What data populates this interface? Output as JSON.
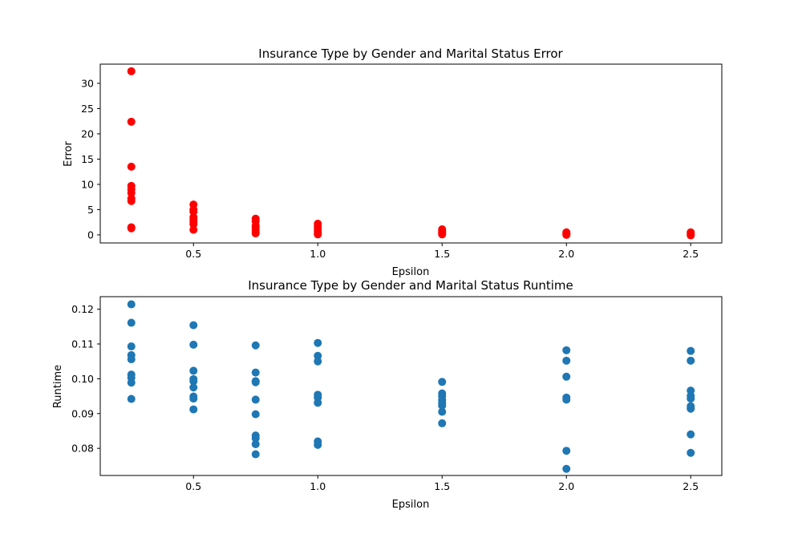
{
  "chart_data": [
    {
      "type": "scatter",
      "title": "Insurance Type by Gender and Marital Status Error",
      "xlabel": "Epsilon",
      "ylabel": "Error",
      "xlim": [
        0.125,
        2.625
      ],
      "ylim": [
        -1.6,
        33.8
      ],
      "xticks": [
        0.5,
        1.0,
        1.5,
        2.0,
        2.5
      ],
      "xtick_labels": [
        "0.5",
        "1.0",
        "1.5",
        "2.0",
        "2.5"
      ],
      "yticks": [
        0,
        5,
        10,
        15,
        20,
        25,
        30
      ],
      "ytick_labels": [
        "0",
        "5",
        "10",
        "15",
        "20",
        "25",
        "30"
      ],
      "grid": false,
      "color": "#ff0000",
      "points": [
        {
          "x": 0.25,
          "y": 32.4
        },
        {
          "x": 0.25,
          "y": 22.4
        },
        {
          "x": 0.25,
          "y": 13.5
        },
        {
          "x": 0.25,
          "y": 9.7
        },
        {
          "x": 0.25,
          "y": 9.0
        },
        {
          "x": 0.25,
          "y": 8.3
        },
        {
          "x": 0.25,
          "y": 7.2
        },
        {
          "x": 0.25,
          "y": 6.7
        },
        {
          "x": 0.25,
          "y": 1.5
        },
        {
          "x": 0.25,
          "y": 1.3
        },
        {
          "x": 0.5,
          "y": 6.0
        },
        {
          "x": 0.5,
          "y": 5.0
        },
        {
          "x": 0.5,
          "y": 4.6
        },
        {
          "x": 0.5,
          "y": 3.5
        },
        {
          "x": 0.5,
          "y": 3.0
        },
        {
          "x": 0.5,
          "y": 2.5
        },
        {
          "x": 0.5,
          "y": 2.1
        },
        {
          "x": 0.5,
          "y": 1.0
        },
        {
          "x": 0.75,
          "y": 3.2
        },
        {
          "x": 0.75,
          "y": 2.7
        },
        {
          "x": 0.75,
          "y": 1.8
        },
        {
          "x": 0.75,
          "y": 1.5
        },
        {
          "x": 0.75,
          "y": 1.0
        },
        {
          "x": 0.75,
          "y": 0.6
        },
        {
          "x": 0.75,
          "y": 0.3
        },
        {
          "x": 1.0,
          "y": 2.2
        },
        {
          "x": 1.0,
          "y": 1.6
        },
        {
          "x": 1.0,
          "y": 1.1
        },
        {
          "x": 1.0,
          "y": 0.7
        },
        {
          "x": 1.0,
          "y": 0.3
        },
        {
          "x": 1.0,
          "y": 0.1
        },
        {
          "x": 1.5,
          "y": 1.1
        },
        {
          "x": 1.5,
          "y": 0.8
        },
        {
          "x": 1.5,
          "y": 0.5
        },
        {
          "x": 1.5,
          "y": 0.3
        },
        {
          "x": 1.5,
          "y": 0.1
        },
        {
          "x": 2.0,
          "y": 0.5
        },
        {
          "x": 2.0,
          "y": 0.3
        },
        {
          "x": 2.0,
          "y": 0.1
        },
        {
          "x": 2.0,
          "y": 0.0
        },
        {
          "x": 2.5,
          "y": 0.5
        },
        {
          "x": 2.5,
          "y": 0.3
        },
        {
          "x": 2.5,
          "y": 0.1
        },
        {
          "x": 2.5,
          "y": -0.1
        }
      ]
    },
    {
      "type": "scatter",
      "title": "Insurance Type by Gender and Marital Status Runtime",
      "xlabel": "Epsilon",
      "ylabel": "Runtime",
      "xlim": [
        0.125,
        2.625
      ],
      "ylim": [
        0.0722,
        0.1236
      ],
      "xticks": [
        0.5,
        1.0,
        1.5,
        2.0,
        2.5
      ],
      "xtick_labels": [
        "0.5",
        "1.0",
        "1.5",
        "2.0",
        "2.5"
      ],
      "yticks": [
        0.08,
        0.09,
        0.1,
        0.11,
        0.12
      ],
      "ytick_labels": [
        "0.08",
        "0.09",
        "0.10",
        "0.11",
        "0.12"
      ],
      "grid": false,
      "color": "#1f77b4",
      "points": [
        {
          "x": 0.25,
          "y": 0.1214
        },
        {
          "x": 0.25,
          "y": 0.1161
        },
        {
          "x": 0.25,
          "y": 0.1093
        },
        {
          "x": 0.25,
          "y": 0.1068
        },
        {
          "x": 0.25,
          "y": 0.1056
        },
        {
          "x": 0.25,
          "y": 0.1012
        },
        {
          "x": 0.25,
          "y": 0.1003
        },
        {
          "x": 0.25,
          "y": 0.0989
        },
        {
          "x": 0.25,
          "y": 0.0942
        },
        {
          "x": 0.5,
          "y": 0.1154
        },
        {
          "x": 0.5,
          "y": 0.1098
        },
        {
          "x": 0.5,
          "y": 0.1023
        },
        {
          "x": 0.5,
          "y": 0.0999
        },
        {
          "x": 0.5,
          "y": 0.0993
        },
        {
          "x": 0.5,
          "y": 0.0975
        },
        {
          "x": 0.5,
          "y": 0.0949
        },
        {
          "x": 0.5,
          "y": 0.0943
        },
        {
          "x": 0.5,
          "y": 0.0912
        },
        {
          "x": 0.75,
          "y": 0.1096
        },
        {
          "x": 0.75,
          "y": 0.1018
        },
        {
          "x": 0.75,
          "y": 0.0993
        },
        {
          "x": 0.75,
          "y": 0.099
        },
        {
          "x": 0.75,
          "y": 0.094
        },
        {
          "x": 0.75,
          "y": 0.0898
        },
        {
          "x": 0.75,
          "y": 0.0837
        },
        {
          "x": 0.75,
          "y": 0.0829
        },
        {
          "x": 0.75,
          "y": 0.0812
        },
        {
          "x": 0.75,
          "y": 0.0783
        },
        {
          "x": 1.0,
          "y": 0.1103
        },
        {
          "x": 1.0,
          "y": 0.1066
        },
        {
          "x": 1.0,
          "y": 0.105
        },
        {
          "x": 1.0,
          "y": 0.0954
        },
        {
          "x": 1.0,
          "y": 0.0946
        },
        {
          "x": 1.0,
          "y": 0.0931
        },
        {
          "x": 1.0,
          "y": 0.082
        },
        {
          "x": 1.0,
          "y": 0.081
        },
        {
          "x": 1.5,
          "y": 0.0991
        },
        {
          "x": 1.5,
          "y": 0.0958
        },
        {
          "x": 1.5,
          "y": 0.095
        },
        {
          "x": 1.5,
          "y": 0.0939
        },
        {
          "x": 1.5,
          "y": 0.093
        },
        {
          "x": 1.5,
          "y": 0.0923
        },
        {
          "x": 1.5,
          "y": 0.0905
        },
        {
          "x": 1.5,
          "y": 0.0872
        },
        {
          "x": 2.0,
          "y": 0.1082
        },
        {
          "x": 2.0,
          "y": 0.1052
        },
        {
          "x": 2.0,
          "y": 0.1006
        },
        {
          "x": 2.0,
          "y": 0.0946
        },
        {
          "x": 2.0,
          "y": 0.094
        },
        {
          "x": 2.0,
          "y": 0.0793
        },
        {
          "x": 2.0,
          "y": 0.0741
        },
        {
          "x": 2.5,
          "y": 0.108
        },
        {
          "x": 2.5,
          "y": 0.1052
        },
        {
          "x": 2.5,
          "y": 0.0966
        },
        {
          "x": 2.5,
          "y": 0.0951
        },
        {
          "x": 2.5,
          "y": 0.0943
        },
        {
          "x": 2.5,
          "y": 0.0921
        },
        {
          "x": 2.5,
          "y": 0.0914
        },
        {
          "x": 2.5,
          "y": 0.084
        },
        {
          "x": 2.5,
          "y": 0.0787
        }
      ]
    }
  ]
}
